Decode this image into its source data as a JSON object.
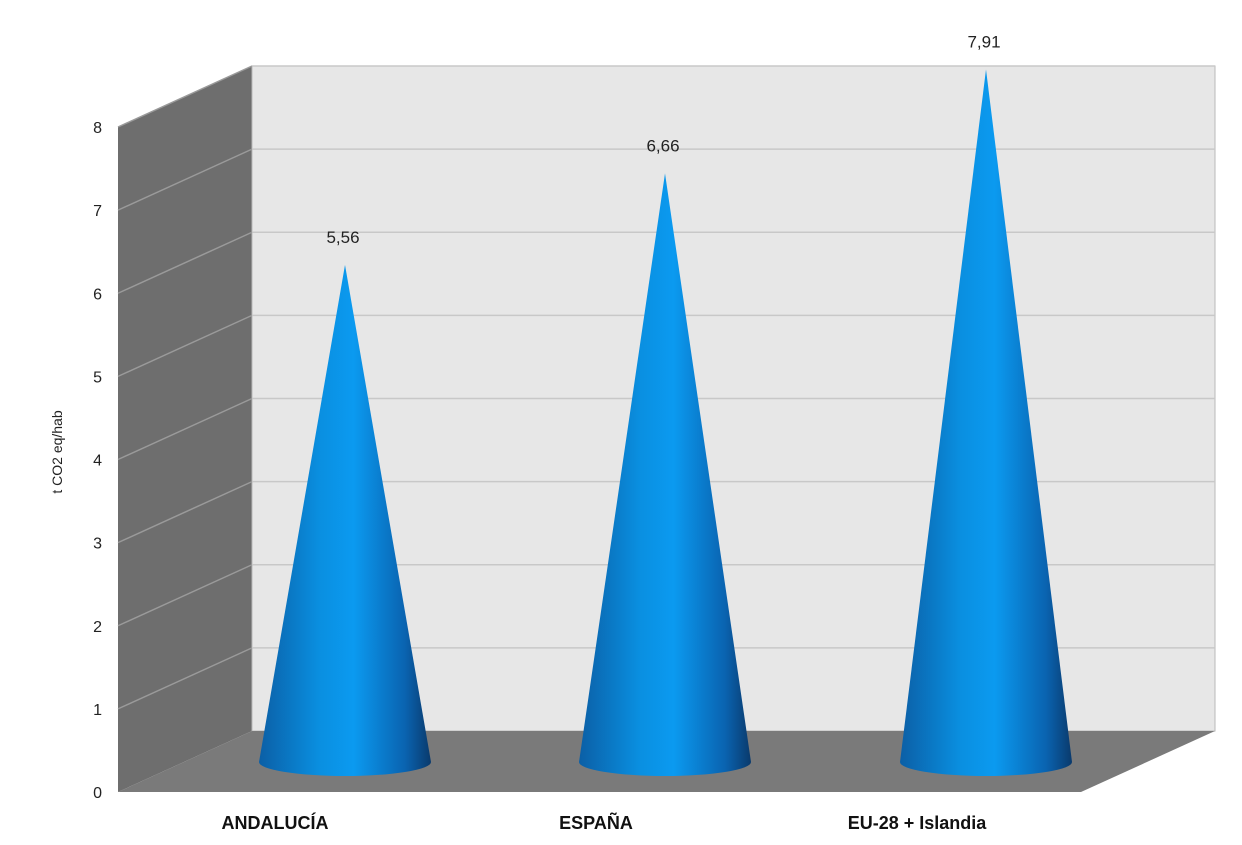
{
  "chart_data": {
    "type": "bar",
    "bar_shape": "cone",
    "categories": [
      "ANDALUCÍA",
      "ESPAÑA",
      "EU-28 + Islandia"
    ],
    "values": [
      5.56,
      6.66,
      7.91
    ],
    "data_labels": [
      "5,56",
      "6,66",
      "7,91"
    ],
    "ylabel": "t CO2 eq/hab",
    "ylim": [
      0,
      8
    ],
    "yticks": [
      "0",
      "1",
      "2",
      "3",
      "4",
      "5",
      "6",
      "7",
      "8"
    ],
    "grid": true,
    "legend": "none",
    "colors": {
      "bar": "#0a8fe0",
      "bar_dark": "#0a3f73",
      "back_wall": "#e7e7e7",
      "side_wall": "#6e6e6e",
      "floor": "#7a7a7a",
      "gridline": "#c8c8c8"
    }
  }
}
